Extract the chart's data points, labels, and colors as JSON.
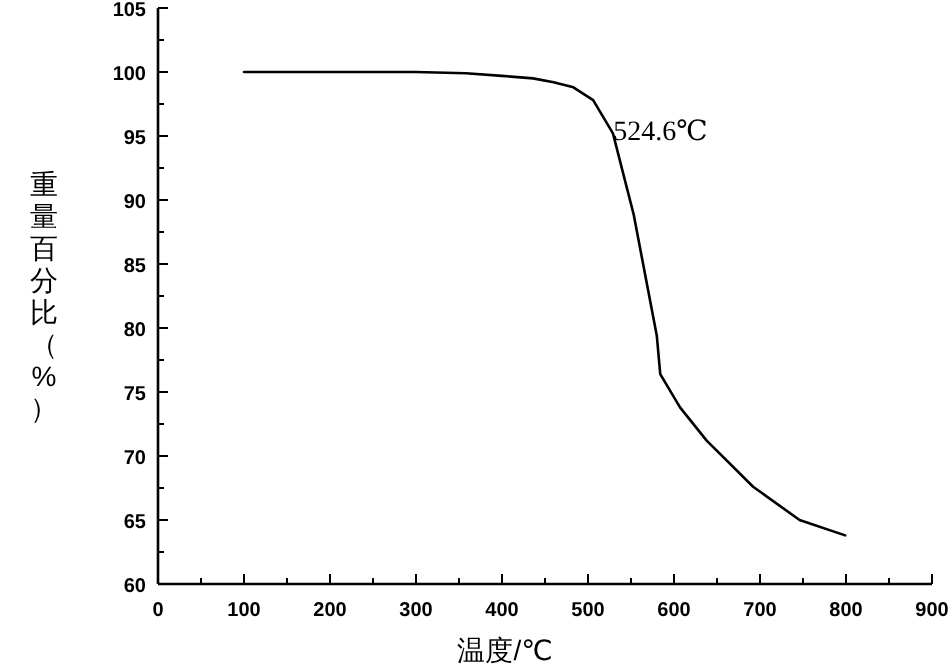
{
  "chart_data": {
    "type": "line",
    "xlabel": "温度/℃",
    "ylabel": "重量百分比（%）",
    "series": [
      {
        "color": "#000000",
        "x": [
          100,
          200,
          300,
          358,
          400,
          436,
          460,
          483,
          506,
          529,
          553,
          580,
          584,
          607,
          638,
          692,
          746,
          799
        ],
        "values": [
          100,
          100,
          100,
          99.9,
          99.7,
          99.5,
          99.2,
          98.8,
          97.8,
          95.2,
          88.9,
          79.4,
          76.4,
          73.8,
          71.2,
          67.6,
          65.0,
          63.8
        ]
      }
    ],
    "annotations": [
      {
        "text": "524.6℃",
        "x": 524.6,
        "y": 95.5
      }
    ],
    "xlim": [
      0,
      900
    ],
    "xticks": [
      0,
      100,
      200,
      300,
      400,
      500,
      600,
      700,
      800,
      900
    ],
    "ylim": [
      60,
      105
    ],
    "yticks": [
      60,
      65,
      70,
      75,
      80,
      85,
      90,
      95,
      100,
      105
    ],
    "marker": "none",
    "line_style": "solid"
  }
}
